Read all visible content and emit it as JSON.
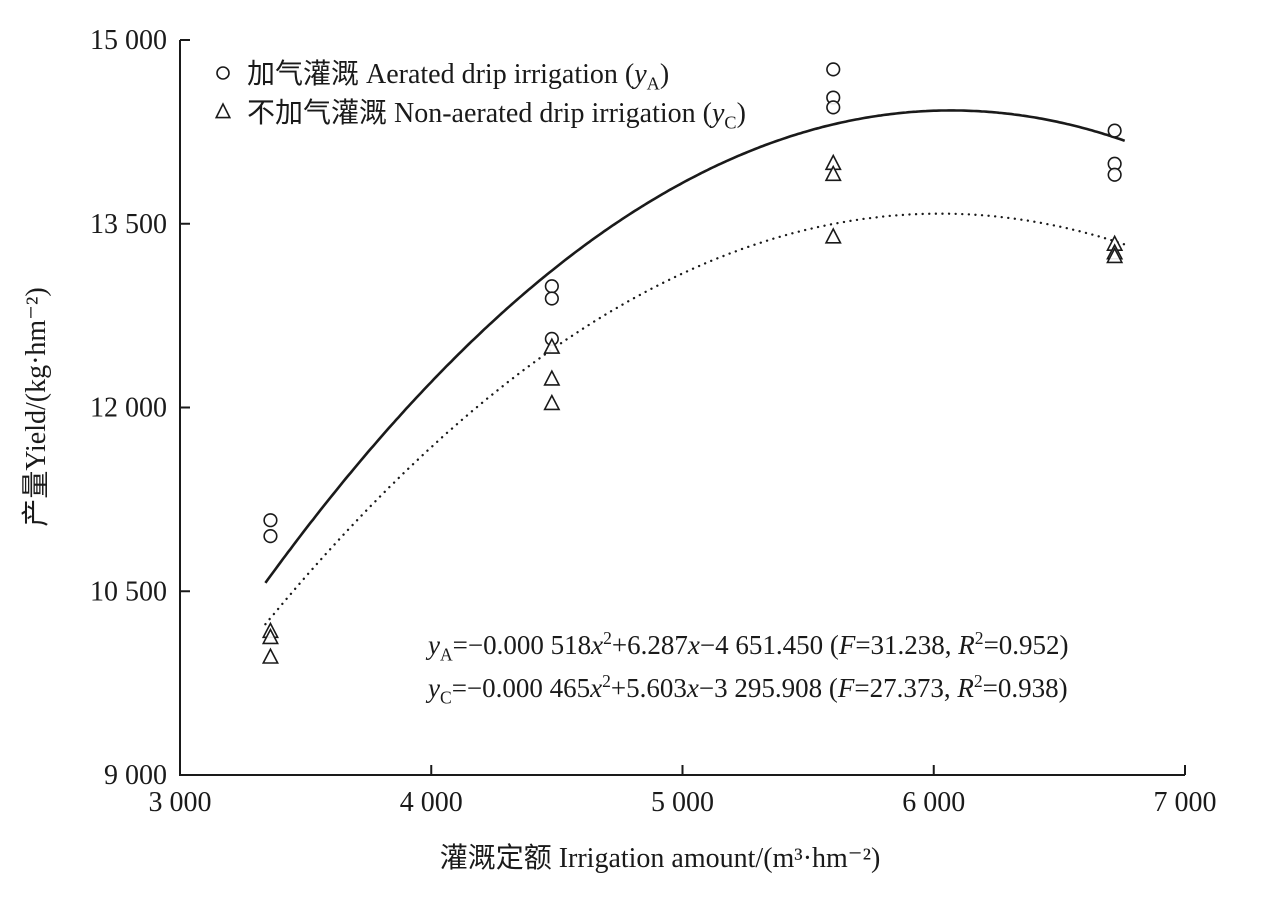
{
  "figure": {
    "background": "#ffffff",
    "ink_color": "#1a1a1a"
  },
  "chart_data": {
    "type": "scatter",
    "title": "",
    "xlabel": "灌溉定额 Irrigation amount/(m³·hm⁻²)",
    "ylabel": "产量Yield/(kg·hm⁻²)",
    "xlim": [
      3000,
      7000
    ],
    "ylim": [
      9000,
      15000
    ],
    "x_ticks": [
      3000,
      4000,
      5000,
      6000,
      7000
    ],
    "x_tick_labels": [
      "3 000",
      "4 000",
      "5 000",
      "6 000",
      "7 000"
    ],
    "y_ticks": [
      9000,
      10500,
      12000,
      13500,
      15000
    ],
    "y_tick_labels": [
      "9 000",
      "10 500",
      "12 000",
      "13 500",
      "15 000"
    ],
    "grid": false,
    "legend_position": "top-left-inside",
    "series": [
      {
        "id": "aerated",
        "label_zh": "加气灌溉",
        "label_en": "Aerated drip irrigation",
        "symbol": "yA",
        "marker": "circle",
        "line": "solid",
        "points": [
          [
            3360,
            11080
          ],
          [
            3360,
            10950
          ],
          [
            4480,
            12990
          ],
          [
            4480,
            12890
          ],
          [
            4480,
            12560
          ],
          [
            5600,
            14760
          ],
          [
            5600,
            14530
          ],
          [
            5600,
            14450
          ],
          [
            6720,
            14260
          ],
          [
            6720,
            13990
          ],
          [
            6720,
            13900
          ]
        ],
        "fit": {
          "type": "quadratic",
          "a": -0.000518,
          "b": 6.287,
          "c": -4651.45,
          "F": 31.238,
          "R2": 0.952,
          "domain": [
            3340,
            6760
          ]
        }
      },
      {
        "id": "non-aerated",
        "label_zh": "不加气灌溉",
        "label_en": "Non-aerated drip irrigation",
        "symbol": "yC",
        "marker": "triangle",
        "line": "dotted",
        "points": [
          [
            3360,
            10170
          ],
          [
            3360,
            10120
          ],
          [
            3360,
            9960
          ],
          [
            4480,
            12490
          ],
          [
            4480,
            12230
          ],
          [
            4480,
            12030
          ],
          [
            5600,
            13990
          ],
          [
            5600,
            13900
          ],
          [
            5600,
            13390
          ],
          [
            6720,
            13330
          ],
          [
            6720,
            13260
          ],
          [
            6720,
            13230
          ]
        ],
        "fit": {
          "type": "quadratic",
          "a": -0.000465,
          "b": 5.603,
          "c": -3295.908,
          "F": 27.373,
          "R2": 0.938,
          "domain": [
            3340,
            6780
          ]
        }
      }
    ],
    "legend": {
      "items": [
        {
          "marker": "circle",
          "rich": [
            {
              "text": "加气灌溉 Aerated drip irrigation ("
            },
            {
              "text": "y",
              "style": "italic"
            },
            {
              "text": "A",
              "script": "sub"
            },
            {
              "text": ")"
            }
          ]
        },
        {
          "marker": "triangle",
          "rich": [
            {
              "text": "不加气灌溉 Non-aerated drip irrigation ("
            },
            {
              "text": "y",
              "style": "italic"
            },
            {
              "text": "C",
              "script": "sub"
            },
            {
              "text": ")"
            }
          ]
        }
      ]
    },
    "annotations": [
      {
        "id": "fit-equation-aerated",
        "rich": [
          {
            "text": "y",
            "style": "italic"
          },
          {
            "text": "A",
            "script": "sub"
          },
          {
            "text": "=−0.000 518"
          },
          {
            "text": "x",
            "style": "italic"
          },
          {
            "text": "2",
            "script": "sup"
          },
          {
            "text": "+6.287"
          },
          {
            "text": "x",
            "style": "italic"
          },
          {
            "text": "−4 651.450 ("
          },
          {
            "text": "F",
            "style": "italic"
          },
          {
            "text": "=31.238, "
          },
          {
            "text": "R",
            "style": "italic"
          },
          {
            "text": "2",
            "script": "sup"
          },
          {
            "text": "=0.952)"
          }
        ]
      },
      {
        "id": "fit-equation-non-aerated",
        "rich": [
          {
            "text": "y",
            "style": "italic"
          },
          {
            "text": "C",
            "script": "sub"
          },
          {
            "text": "=−0.000 465"
          },
          {
            "text": "x",
            "style": "italic"
          },
          {
            "text": "2",
            "script": "sup"
          },
          {
            "text": "+5.603"
          },
          {
            "text": "x",
            "style": "italic"
          },
          {
            "text": "−3 295.908 ("
          },
          {
            "text": "F",
            "style": "italic"
          },
          {
            "text": "=27.373, "
          },
          {
            "text": "R",
            "style": "italic"
          },
          {
            "text": "2",
            "script": "sup"
          },
          {
            "text": "=0.938)"
          }
        ]
      }
    ]
  }
}
